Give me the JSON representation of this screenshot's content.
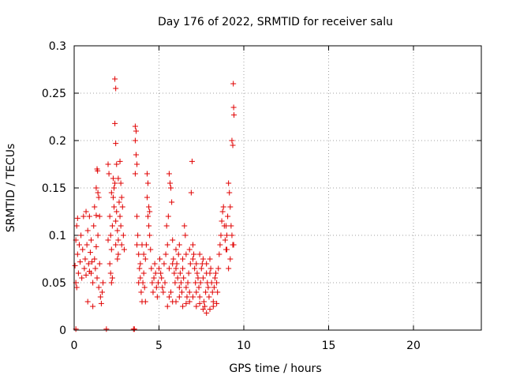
{
  "chart_data": {
    "type": "scatter",
    "title": "Day 176 of 2022, SRMTID for receiver salu",
    "xlabel": "GPS time / hours",
    "ylabel": "SRMTID / TECUs",
    "xlim": [
      0,
      24
    ],
    "ylim": [
      0,
      0.3
    ],
    "xticks": [
      0,
      5,
      10,
      15,
      20
    ],
    "xtick_labels": [
      "0",
      "5",
      "10",
      "15",
      "20"
    ],
    "yticks": [
      0,
      0.05,
      0.1,
      0.15,
      0.2,
      0.25,
      0.3
    ],
    "ytick_labels": [
      "0",
      "0.05",
      "0.1",
      "0.15",
      "0.2",
      "0.25",
      "0.3"
    ],
    "grid": true,
    "marker": "+",
    "color": "#e00000",
    "series": [
      {
        "name": "SRMTID",
        "points": [
          [
            0.05,
            0.068
          ],
          [
            0.1,
            0.095
          ],
          [
            0.15,
            0.11
          ],
          [
            0.2,
            0.08
          ],
          [
            0.25,
            0.06
          ],
          [
            0.3,
            0.09
          ],
          [
            0.35,
            0.072
          ],
          [
            0.4,
            0.1
          ],
          [
            0.45,
            0.055
          ],
          [
            0.5,
            0.085
          ],
          [
            0.55,
            0.12
          ],
          [
            0.6,
            0.065
          ],
          [
            0.65,
            0.075
          ],
          [
            0.7,
            0.058
          ],
          [
            0.75,
            0.09
          ],
          [
            0.8,
            0.105
          ],
          [
            0.85,
            0.07
          ],
          [
            0.9,
            0.062
          ],
          [
            0.95,
            0.082
          ],
          [
            1.0,
            0.095
          ],
          [
            1.05,
            0.072
          ],
          [
            1.1,
            0.05
          ],
          [
            1.15,
            0.11
          ],
          [
            1.2,
            0.075
          ],
          [
            1.25,
            0.065
          ],
          [
            1.3,
            0.088
          ],
          [
            1.35,
            0.055
          ],
          [
            1.4,
            0.1
          ],
          [
            1.45,
            0.045
          ],
          [
            1.5,
            0.07
          ],
          [
            1.2,
            0.13
          ],
          [
            1.3,
            0.121
          ],
          [
            0.7,
            0.125
          ],
          [
            0.2,
            0.118
          ],
          [
            0.1,
            0.05
          ],
          [
            0.15,
            0.045
          ],
          [
            1.5,
            0.12
          ],
          [
            1.55,
            0.035
          ],
          [
            1.6,
            0.028
          ],
          [
            1.65,
            0.04
          ],
          [
            1.1,
            0.025
          ],
          [
            1.7,
            0.05
          ],
          [
            1.35,
            0.17
          ],
          [
            1.38,
            0.168
          ],
          [
            1.4,
            0.145
          ],
          [
            1.45,
            0.14
          ],
          [
            1.3,
            0.15
          ],
          [
            0.8,
            0.03
          ],
          [
            0.9,
            0.12
          ],
          [
            1.0,
            0.06
          ],
          [
            2.0,
            0.175
          ],
          [
            2.05,
            0.165
          ],
          [
            2.1,
            0.12
          ],
          [
            2.15,
            0.1
          ],
          [
            2.2,
            0.085
          ],
          [
            2.25,
            0.11
          ],
          [
            2.3,
            0.14
          ],
          [
            2.35,
            0.13
          ],
          [
            2.4,
            0.155
          ],
          [
            2.45,
            0.115
          ],
          [
            2.5,
            0.125
          ],
          [
            2.55,
            0.105
          ],
          [
            2.6,
            0.095
          ],
          [
            2.65,
            0.135
          ],
          [
            2.7,
            0.12
          ],
          [
            2.75,
            0.11
          ],
          [
            2.8,
            0.09
          ],
          [
            2.85,
            0.13
          ],
          [
            2.9,
            0.1
          ],
          [
            2.95,
            0.085
          ],
          [
            2.4,
            0.265
          ],
          [
            2.45,
            0.255
          ],
          [
            2.4,
            0.218
          ],
          [
            2.45,
            0.197
          ],
          [
            2.5,
            0.175
          ],
          [
            2.7,
            0.178
          ],
          [
            2.3,
            0.16
          ],
          [
            2.2,
            0.145
          ],
          [
            2.1,
            0.07
          ],
          [
            2.15,
            0.06
          ],
          [
            2.2,
            0.05
          ],
          [
            2.25,
            0.055
          ],
          [
            2.0,
            0.095
          ],
          [
            2.6,
            0.08
          ],
          [
            2.75,
            0.155
          ],
          [
            2.8,
            0.14
          ],
          [
            2.6,
            0.16
          ],
          [
            2.35,
            0.15
          ],
          [
            2.45,
            0.09
          ],
          [
            2.55,
            0.075
          ],
          [
            3.6,
            0.215
          ],
          [
            3.65,
            0.21
          ],
          [
            3.6,
            0.2
          ],
          [
            3.65,
            0.185
          ],
          [
            3.7,
            0.175
          ],
          [
            3.6,
            0.165
          ],
          [
            3.7,
            0.12
          ],
          [
            3.75,
            0.1
          ],
          [
            3.8,
            0.08
          ],
          [
            3.85,
            0.065
          ],
          [
            3.9,
            0.055
          ],
          [
            3.95,
            0.04
          ],
          [
            4.0,
            0.03
          ],
          [
            4.05,
            0.05
          ],
          [
            4.1,
            0.06
          ],
          [
            4.15,
            0.045
          ],
          [
            4.2,
            0.075
          ],
          [
            4.25,
            0.09
          ],
          [
            4.3,
            0.14
          ],
          [
            4.35,
            0.12
          ],
          [
            4.4,
            0.11
          ],
          [
            4.45,
            0.1
          ],
          [
            4.5,
            0.085
          ],
          [
            4.55,
            0.065
          ],
          [
            4.6,
            0.05
          ],
          [
            4.65,
            0.04
          ],
          [
            4.7,
            0.055
          ],
          [
            4.75,
            0.07
          ],
          [
            4.8,
            0.06
          ],
          [
            4.85,
            0.045
          ],
          [
            4.9,
            0.035
          ],
          [
            4.95,
            0.05
          ],
          [
            5.0,
            0.065
          ],
          [
            5.05,
            0.075
          ],
          [
            5.1,
            0.06
          ],
          [
            5.15,
            0.055
          ],
          [
            5.2,
            0.045
          ],
          [
            5.25,
            0.04
          ],
          [
            5.3,
            0.07
          ],
          [
            5.35,
            0.05
          ],
          [
            4.3,
            0.165
          ],
          [
            4.35,
            0.155
          ],
          [
            4.4,
            0.13
          ],
          [
            4.45,
            0.125
          ],
          [
            3.7,
            0.09
          ],
          [
            3.8,
            0.05
          ],
          [
            3.9,
            0.07
          ],
          [
            4.0,
            0.09
          ],
          [
            4.1,
            0.08
          ],
          [
            4.2,
            0.03
          ],
          [
            5.4,
            0.08
          ],
          [
            5.45,
            0.11
          ],
          [
            5.5,
            0.09
          ],
          [
            5.55,
            0.12
          ],
          [
            5.6,
            0.165
          ],
          [
            5.65,
            0.155
          ],
          [
            5.7,
            0.15
          ],
          [
            5.75,
            0.135
          ],
          [
            5.8,
            0.095
          ],
          [
            5.85,
            0.075
          ],
          [
            5.9,
            0.06
          ],
          [
            5.95,
            0.05
          ],
          [
            6.0,
            0.065
          ],
          [
            6.05,
            0.07
          ],
          [
            6.1,
            0.055
          ],
          [
            6.15,
            0.08
          ],
          [
            6.2,
            0.045
          ],
          [
            6.25,
            0.06
          ],
          [
            6.3,
            0.05
          ],
          [
            6.35,
            0.04
          ],
          [
            6.4,
            0.065
          ],
          [
            6.45,
            0.055
          ],
          [
            6.5,
            0.11
          ],
          [
            6.55,
            0.1
          ],
          [
            6.6,
            0.045
          ],
          [
            6.65,
            0.035
          ],
          [
            6.7,
            0.05
          ],
          [
            6.75,
            0.06
          ],
          [
            6.8,
            0.04
          ],
          [
            6.85,
            0.07
          ],
          [
            6.9,
            0.145
          ],
          [
            6.95,
            0.178
          ],
          [
            7.0,
            0.09
          ],
          [
            7.05,
            0.08
          ],
          [
            7.1,
            0.065
          ],
          [
            7.15,
            0.05
          ],
          [
            7.2,
            0.04
          ],
          [
            7.25,
            0.06
          ],
          [
            7.3,
            0.055
          ],
          [
            7.35,
            0.045
          ],
          [
            7.4,
            0.035
          ],
          [
            7.45,
            0.05
          ],
          [
            7.5,
            0.065
          ],
          [
            7.55,
            0.07
          ],
          [
            7.6,
            0.055
          ],
          [
            7.65,
            0.03
          ],
          [
            7.7,
            0.025
          ],
          [
            7.75,
            0.04
          ],
          [
            7.8,
            0.06
          ],
          [
            7.85,
            0.05
          ],
          [
            7.9,
            0.045
          ],
          [
            7.95,
            0.035
          ],
          [
            8.0,
            0.075
          ],
          [
            8.05,
            0.065
          ],
          [
            8.1,
            0.05
          ],
          [
            8.15,
            0.04
          ],
          [
            8.2,
            0.03
          ],
          [
            8.25,
            0.045
          ],
          [
            8.3,
            0.055
          ],
          [
            8.35,
            0.06
          ],
          [
            8.4,
            0.05
          ],
          [
            8.45,
            0.04
          ],
          [
            8.5,
            0.065
          ],
          [
            8.55,
            0.08
          ],
          [
            8.6,
            0.09
          ],
          [
            8.65,
            0.1
          ],
          [
            8.7,
            0.115
          ],
          [
            8.75,
            0.125
          ],
          [
            8.8,
            0.13
          ],
          [
            8.85,
            0.11
          ],
          [
            8.9,
            0.095
          ],
          [
            8.95,
            0.085
          ],
          [
            9.0,
            0.1
          ],
          [
            9.05,
            0.12
          ],
          [
            9.1,
            0.155
          ],
          [
            9.15,
            0.145
          ],
          [
            9.2,
            0.13
          ],
          [
            9.25,
            0.11
          ],
          [
            9.3,
            0.2
          ],
          [
            9.35,
            0.195
          ],
          [
            9.38,
            0.26
          ],
          [
            9.4,
            0.235
          ],
          [
            9.42,
            0.227
          ],
          [
            9.3,
            0.1
          ],
          [
            9.35,
            0.09
          ],
          [
            9.2,
            0.075
          ],
          [
            9.1,
            0.065
          ],
          [
            9.0,
            0.085
          ],
          [
            8.95,
            0.11
          ],
          [
            9.4,
            0.09
          ],
          [
            5.5,
            0.025
          ],
          [
            5.6,
            0.035
          ],
          [
            5.7,
            0.04
          ],
          [
            5.8,
            0.03
          ],
          [
            6.0,
            0.03
          ],
          [
            6.2,
            0.035
          ],
          [
            6.4,
            0.025
          ],
          [
            6.6,
            0.028
          ],
          [
            6.8,
            0.03
          ],
          [
            7.0,
            0.035
          ],
          [
            7.2,
            0.025
          ],
          [
            7.4,
            0.028
          ],
          [
            7.6,
            0.022
          ],
          [
            7.8,
            0.018
          ],
          [
            8.0,
            0.022
          ],
          [
            8.2,
            0.025
          ],
          [
            8.4,
            0.028
          ],
          [
            5.6,
            0.065
          ],
          [
            5.8,
            0.07
          ],
          [
            6.0,
            0.085
          ],
          [
            6.2,
            0.09
          ],
          [
            6.4,
            0.075
          ],
          [
            6.6,
            0.08
          ],
          [
            6.8,
            0.085
          ],
          [
            7.0,
            0.075
          ],
          [
            7.2,
            0.07
          ],
          [
            7.4,
            0.08
          ],
          [
            7.6,
            0.075
          ],
          [
            7.8,
            0.07
          ],
          [
            8.0,
            0.06
          ],
          [
            0.1,
            0.001
          ],
          [
            1.9,
            0.001
          ],
          [
            3.5,
            0.001
          ],
          [
            3.55,
            0.001
          ]
        ]
      }
    ]
  }
}
